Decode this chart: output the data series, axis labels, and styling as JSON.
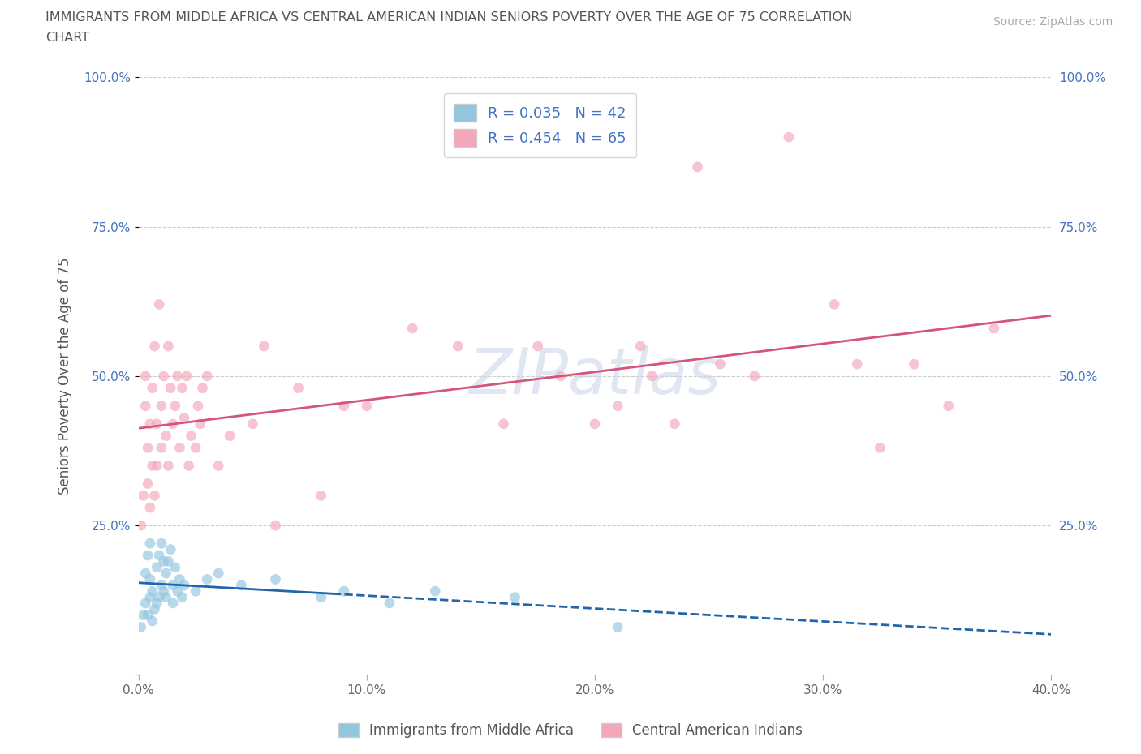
{
  "title_line1": "IMMIGRANTS FROM MIDDLE AFRICA VS CENTRAL AMERICAN INDIAN SENIORS POVERTY OVER THE AGE OF 75 CORRELATION",
  "title_line2": "CHART",
  "source_text": "Source: ZipAtlas.com",
  "ylabel": "Seniors Poverty Over the Age of 75",
  "legend1_label": "Immigrants from Middle Africa",
  "legend2_label": "Central American Indians",
  "R1": 0.035,
  "N1": 42,
  "R2": 0.454,
  "N2": 65,
  "color1": "#92c5de",
  "color2": "#f4a7b9",
  "trendline1_color": "#2166ac",
  "trendline2_color": "#d6537a",
  "xlim": [
    0.0,
    0.4
  ],
  "ylim": [
    0.0,
    1.0
  ],
  "xtick_vals": [
    0.0,
    0.1,
    0.2,
    0.3,
    0.4
  ],
  "ytick_vals": [
    0.0,
    0.25,
    0.5,
    0.75,
    1.0
  ],
  "xticklabels": [
    "0.0%",
    "10.0%",
    "20.0%",
    "30.0%",
    "40.0%"
  ],
  "yticklabels": [
    "",
    "25.0%",
    "50.0%",
    "75.0%",
    "100.0%"
  ],
  "watermark": "ZIPatlas",
  "background_color": "#ffffff",
  "grid_color": "#cccccc",
  "trendline1_split": 0.085,
  "scatter1_x": [
    0.001,
    0.002,
    0.003,
    0.003,
    0.004,
    0.004,
    0.005,
    0.005,
    0.005,
    0.006,
    0.006,
    0.007,
    0.008,
    0.008,
    0.009,
    0.009,
    0.01,
    0.01,
    0.011,
    0.011,
    0.012,
    0.012,
    0.013,
    0.014,
    0.015,
    0.015,
    0.016,
    0.017,
    0.018,
    0.019,
    0.02,
    0.025,
    0.03,
    0.035,
    0.045,
    0.06,
    0.08,
    0.09,
    0.11,
    0.13,
    0.165,
    0.21
  ],
  "scatter1_y": [
    0.08,
    0.1,
    0.12,
    0.17,
    0.1,
    0.2,
    0.13,
    0.16,
    0.22,
    0.09,
    0.14,
    0.11,
    0.12,
    0.18,
    0.13,
    0.2,
    0.15,
    0.22,
    0.14,
    0.19,
    0.13,
    0.17,
    0.19,
    0.21,
    0.12,
    0.15,
    0.18,
    0.14,
    0.16,
    0.13,
    0.15,
    0.14,
    0.16,
    0.17,
    0.15,
    0.16,
    0.13,
    0.14,
    0.12,
    0.14,
    0.13,
    0.08
  ],
  "scatter2_x": [
    0.001,
    0.002,
    0.003,
    0.003,
    0.004,
    0.004,
    0.005,
    0.005,
    0.006,
    0.006,
    0.007,
    0.007,
    0.008,
    0.008,
    0.009,
    0.01,
    0.01,
    0.011,
    0.012,
    0.013,
    0.013,
    0.014,
    0.015,
    0.016,
    0.017,
    0.018,
    0.019,
    0.02,
    0.021,
    0.022,
    0.023,
    0.025,
    0.026,
    0.027,
    0.028,
    0.03,
    0.035,
    0.04,
    0.05,
    0.055,
    0.06,
    0.07,
    0.08,
    0.09,
    0.1,
    0.12,
    0.14,
    0.16,
    0.175,
    0.185,
    0.2,
    0.21,
    0.22,
    0.225,
    0.235,
    0.245,
    0.255,
    0.27,
    0.285,
    0.305,
    0.315,
    0.325,
    0.34,
    0.355,
    0.375
  ],
  "scatter2_y": [
    0.25,
    0.3,
    0.45,
    0.5,
    0.32,
    0.38,
    0.28,
    0.42,
    0.35,
    0.48,
    0.3,
    0.55,
    0.35,
    0.42,
    0.62,
    0.38,
    0.45,
    0.5,
    0.4,
    0.35,
    0.55,
    0.48,
    0.42,
    0.45,
    0.5,
    0.38,
    0.48,
    0.43,
    0.5,
    0.35,
    0.4,
    0.38,
    0.45,
    0.42,
    0.48,
    0.5,
    0.35,
    0.4,
    0.42,
    0.55,
    0.25,
    0.48,
    0.3,
    0.45,
    0.45,
    0.58,
    0.55,
    0.42,
    0.55,
    0.5,
    0.42,
    0.45,
    0.55,
    0.5,
    0.42,
    0.85,
    0.52,
    0.5,
    0.9,
    0.62,
    0.52,
    0.38,
    0.52,
    0.45,
    0.58
  ]
}
